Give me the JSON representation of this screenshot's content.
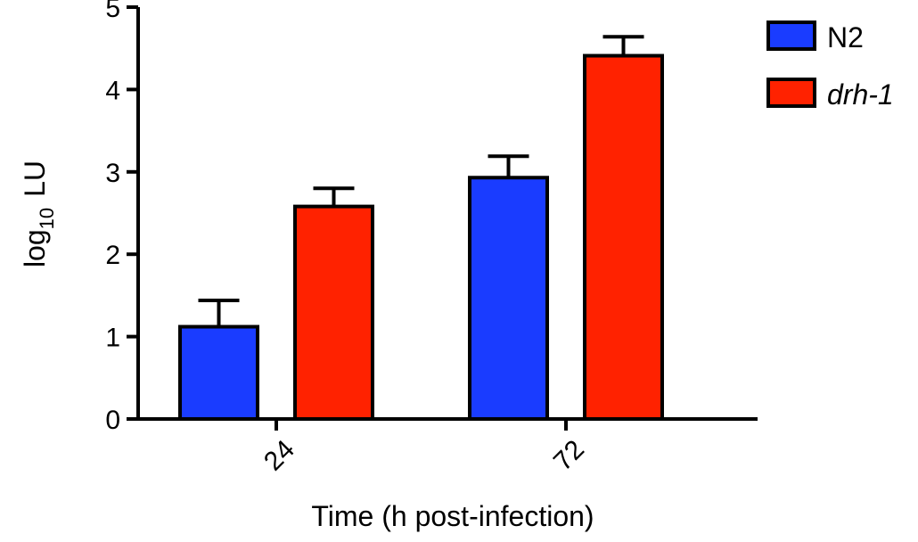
{
  "chart_data": {
    "type": "bar",
    "categories": [
      "24",
      "72"
    ],
    "series": [
      {
        "name": "N2",
        "italic": false,
        "color": "#1a3cff",
        "values": [
          1.12,
          2.93
        ],
        "error": [
          0.32,
          0.26
        ]
      },
      {
        "name": "drh-1",
        "italic": true,
        "color": "#ff2200",
        "values": [
          2.58,
          4.41
        ],
        "error": [
          0.22,
          0.23
        ]
      }
    ],
    "xlabel": "Time (h post-infection)",
    "ylabel": {
      "main": "log",
      "sub": "10",
      "suffix": "LU"
    },
    "ylim": [
      0,
      5
    ],
    "yticks": [
      "0",
      "1",
      "2",
      "3",
      "4",
      "5"
    ],
    "grid": false,
    "legend": "top-right",
    "x_tick_rotation": "rotated 45 degrees"
  }
}
